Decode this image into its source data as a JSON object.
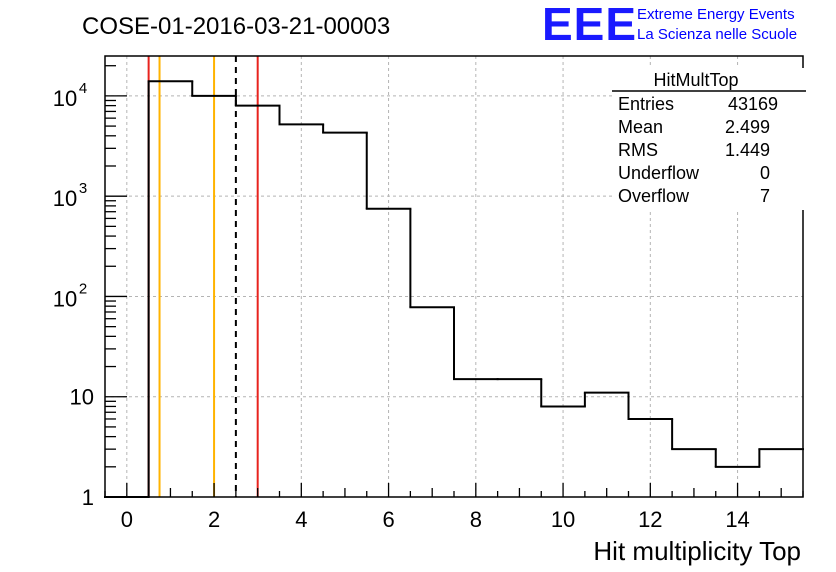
{
  "header": {
    "title": "COSE-01-2016-03-21-00003",
    "logo_text": "EEE",
    "logo_line1": "Extreme Energy Events",
    "logo_line2": "La Scienza nelle Scuole"
  },
  "stats_box": {
    "title": "HitMultTop",
    "rows": [
      {
        "label": "Entries",
        "value": "43169"
      },
      {
        "label": "Mean",
        "value": "2.499"
      },
      {
        "label": "RMS",
        "value": "1.449"
      },
      {
        "label": "Underflow",
        "value": "0"
      },
      {
        "label": "Overflow",
        "value": "7"
      }
    ]
  },
  "chart_data": {
    "type": "bar",
    "style": "step-histogram",
    "title": "COSE-01-2016-03-21-00003",
    "xlabel": "Hit multiplicity Top",
    "ylabel": "",
    "xlim": [
      -0.5,
      15.5
    ],
    "ylim": [
      1,
      25000
    ],
    "y_scale": "log",
    "grid": true,
    "bin_edges": [
      -0.5,
      0.5,
      1.5,
      2.5,
      3.5,
      4.5,
      5.5,
      6.5,
      7.5,
      8.5,
      9.5,
      10.5,
      11.5,
      12.5,
      13.5,
      14.5,
      15.5
    ],
    "values": [
      1,
      14000,
      10000,
      8000,
      5200,
      4300,
      750,
      78,
      15,
      15,
      8,
      11,
      6,
      3,
      2,
      3
    ],
    "x_ticks": [
      {
        "value": 0,
        "label": "0"
      },
      {
        "value": 2,
        "label": "2"
      },
      {
        "value": 4,
        "label": "4"
      },
      {
        "value": 6,
        "label": "6"
      },
      {
        "value": 8,
        "label": "8"
      },
      {
        "value": 10,
        "label": "10"
      },
      {
        "value": 12,
        "label": "12"
      },
      {
        "value": 14,
        "label": "14"
      }
    ],
    "y_ticks": [
      {
        "value": 1,
        "label": "1"
      },
      {
        "value": 10,
        "label": "10"
      },
      {
        "value": 100,
        "label": "10",
        "exp": "2"
      },
      {
        "value": 1000,
        "label": "10",
        "exp": "3"
      },
      {
        "value": 10000,
        "label": "10",
        "exp": "4"
      }
    ],
    "vertical_lines": [
      {
        "x": 0.5,
        "color": "#e8231e",
        "style": "solid"
      },
      {
        "x": 0.75,
        "color": "#ffb300",
        "style": "solid"
      },
      {
        "x": 2.0,
        "color": "#ffb300",
        "style": "solid"
      },
      {
        "x": 2.5,
        "color": "#000000",
        "style": "dashed"
      },
      {
        "x": 3.0,
        "color": "#e8231e",
        "style": "solid"
      }
    ]
  }
}
